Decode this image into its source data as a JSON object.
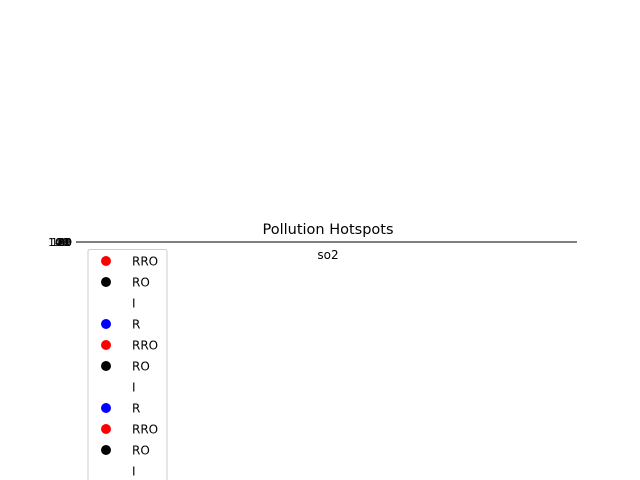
{
  "chart_data": {
    "type": "scatter",
    "title": "Pollution Hotspots",
    "xlabel": "so2",
    "ylabel": "",
    "grid": false,
    "legend_placement": "lower left",
    "y_tick_labels": [
      "0",
      "20",
      "40",
      "60",
      "80",
      "100",
      "120"
    ],
    "legend": [
      {
        "label": "RRO",
        "color": "#ff0000",
        "marker": "circle"
      },
      {
        "label": "RO",
        "color": "#000000",
        "marker": "circle"
      },
      {
        "label": "I",
        "color": "#ffffff",
        "marker": "circle"
      },
      {
        "label": "R",
        "color": "#0000ff",
        "marker": "circle"
      },
      {
        "label": "RRO",
        "color": "#ff0000",
        "marker": "circle"
      },
      {
        "label": "RO",
        "color": "#000000",
        "marker": "circle"
      },
      {
        "label": "I",
        "color": "#ffffff",
        "marker": "circle"
      },
      {
        "label": "R",
        "color": "#0000ff",
        "marker": "circle"
      },
      {
        "label": "RRO",
        "color": "#ff0000",
        "marker": "circle"
      },
      {
        "label": "RO",
        "color": "#000000",
        "marker": "circle"
      },
      {
        "label": "I",
        "color": "#ffffff",
        "marker": "circle"
      }
    ]
  }
}
